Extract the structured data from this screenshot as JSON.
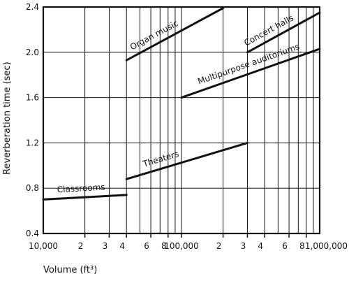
{
  "chart_data": {
    "type": "line",
    "xscale": "log",
    "xlim": [
      10000,
      1000000
    ],
    "ylim": [
      0.4,
      2.4
    ],
    "grid": true,
    "xlabel": "Volume (ft³)",
    "ylabel": "Reverberation time (sec)",
    "y_ticks": [
      "0.4",
      "0.8",
      "1.2",
      "1.6",
      "2.0",
      "2.4"
    ],
    "x_ticks": [
      {
        "value": 10000,
        "label": "10,000"
      },
      {
        "value": 20000,
        "label": "2"
      },
      {
        "value": 30000,
        "label": "3"
      },
      {
        "value": 40000,
        "label": "4"
      },
      {
        "value": 60000,
        "label": "6"
      },
      {
        "value": 80000,
        "label": "8"
      },
      {
        "value": 100000,
        "label": "100,000"
      },
      {
        "value": 200000,
        "label": "2"
      },
      {
        "value": 300000,
        "label": "3"
      },
      {
        "value": 400000,
        "label": "4"
      },
      {
        "value": 600000,
        "label": "6"
      },
      {
        "value": 800000,
        "label": "8"
      },
      {
        "value": 1000000,
        "label": "1,000,000"
      }
    ],
    "series": [
      {
        "name": "Organ music",
        "x": [
          40000,
          200000
        ],
        "y": [
          1.93,
          2.39
        ]
      },
      {
        "name": "Concert halls",
        "x": [
          300000,
          1000000
        ],
        "y": [
          2.0,
          2.35
        ]
      },
      {
        "name": "Multipurpose auditoriums",
        "x": [
          100000,
          1000000
        ],
        "y": [
          1.6,
          2.03
        ]
      },
      {
        "name": "Theaters",
        "x": [
          40000,
          300000
        ],
        "y": [
          0.88,
          1.2
        ]
      },
      {
        "name": "Classrooms",
        "x": [
          10000,
          40000
        ],
        "y": [
          0.7,
          0.74
        ]
      }
    ]
  }
}
